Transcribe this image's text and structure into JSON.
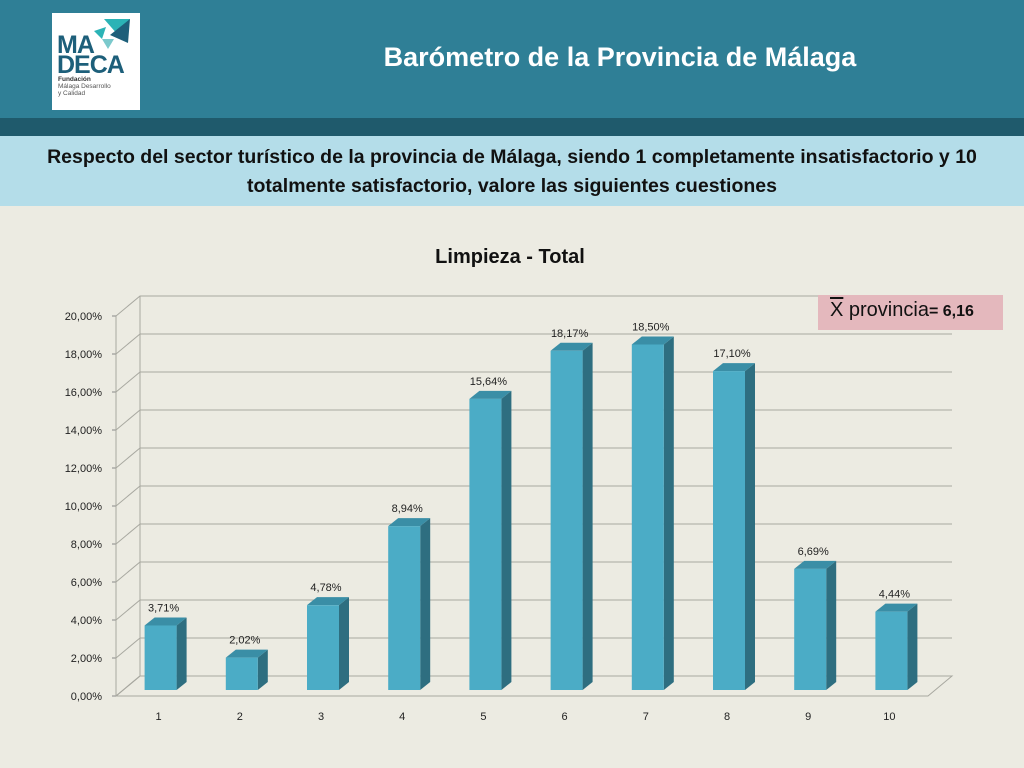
{
  "header": {
    "title": "Barómetro de la Provincia de Málaga",
    "logo": {
      "line1": "MA",
      "line2": "DECA",
      "sub1": "Fundación",
      "sub2": "Málaga Desarrollo",
      "sub3": "y Calidad",
      "colors": [
        "#2bb3b6",
        "#1d5f7a",
        "#7bc9cc"
      ]
    }
  },
  "question": "Respecto del sector turístico de la provincia de Málaga, siendo 1 completamente insatisfactorio y 10 totalmente satisfactorio, valore las siguientes cuestiones",
  "mean": {
    "symbol": "X",
    "label": " provincia",
    "value": "= 6,16"
  },
  "colors": {
    "bar_front": "#4bacc6",
    "bar_side": "#2e6e80",
    "bar_top": "#3a8ea6",
    "header": "#2f7f96",
    "band": "#b4dde9",
    "mean_box": "#e4b8bd"
  },
  "chart_data": {
    "type": "bar",
    "title": "Limpieza - Total",
    "categories": [
      "1",
      "2",
      "3",
      "4",
      "5",
      "6",
      "7",
      "8",
      "9",
      "10"
    ],
    "values": [
      3.71,
      2.02,
      4.78,
      8.94,
      15.64,
      18.17,
      18.5,
      17.1,
      6.69,
      4.44
    ],
    "data_labels": [
      "3,71%",
      "2,02%",
      "4,78%",
      "8,94%",
      "15,64%",
      "18,17%",
      "18,50%",
      "17,10%",
      "6,69%",
      "4,44%"
    ],
    "ylim": [
      0,
      20
    ],
    "yticks": [
      0,
      2,
      4,
      6,
      8,
      10,
      12,
      14,
      16,
      18,
      20
    ],
    "ytick_labels": [
      "0,00%",
      "2,00%",
      "4,00%",
      "6,00%",
      "8,00%",
      "10,00%",
      "12,00%",
      "14,00%",
      "16,00%",
      "18,00%",
      "20,00%"
    ],
    "xlabel": "",
    "ylabel": "",
    "grid": true,
    "legend": "none"
  }
}
